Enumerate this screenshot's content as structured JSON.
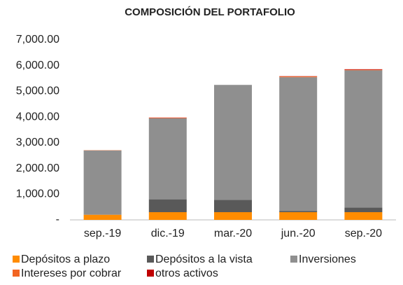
{
  "chart_data": {
    "type": "stacked_bar",
    "title": "COMPOSICIÓN DEL PORTAFOLIO",
    "categories": [
      "sep.-19",
      "dic.-19",
      "mar.-20",
      "jun.-20",
      "sep.-20"
    ],
    "series": [
      {
        "name": "Depósitos a plazo",
        "color": "#ff8c00",
        "values": [
          200,
          300,
          300,
          300,
          300
        ]
      },
      {
        "name": "Depósitos a la vista",
        "color": "#595959",
        "values": [
          10,
          500,
          480,
          50,
          180
        ]
      },
      {
        "name": "Inversiones",
        "color": "#8f8f8f",
        "values": [
          2490,
          3150,
          4470,
          5200,
          5340
        ]
      },
      {
        "name": "Intereses por cobrar",
        "color": "#f26522",
        "values": [
          10,
          20,
          0,
          30,
          20
        ]
      },
      {
        "name": "otros activos",
        "color": "#c00000",
        "values": [
          0,
          10,
          0,
          10,
          20
        ]
      }
    ],
    "ylim": [
      0,
      7000
    ],
    "yticks": [
      {
        "value": 0,
        "label": "-"
      },
      {
        "value": 1000,
        "label": "1,000.00"
      },
      {
        "value": 2000,
        "label": "2,000.00"
      },
      {
        "value": 3000,
        "label": "3,000.00"
      },
      {
        "value": 4000,
        "label": "4,000.00"
      },
      {
        "value": 5000,
        "label": "5,000.00"
      },
      {
        "value": 6000,
        "label": "6,000.00"
      },
      {
        "value": 7000,
        "label": "7,000.00"
      }
    ],
    "grid": false
  }
}
